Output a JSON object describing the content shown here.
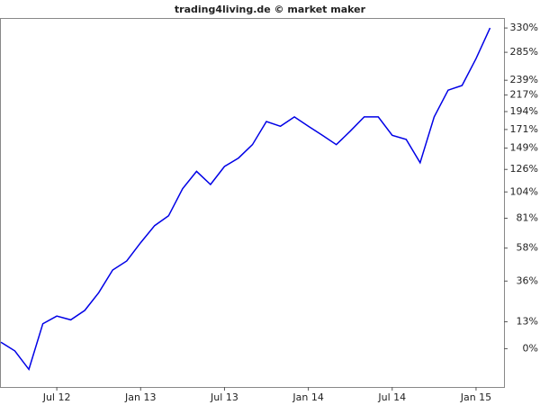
{
  "chart_data": {
    "type": "line",
    "title": "trading4living.de © market maker",
    "x": [
      "2012-03",
      "2012-04",
      "2012-05",
      "2012-06",
      "2012-07",
      "2012-08",
      "2012-09",
      "2012-10",
      "2012-11",
      "2012-12",
      "2013-01",
      "2013-02",
      "2013-03",
      "2013-04",
      "2013-05",
      "2013-06",
      "2013-07",
      "2013-08",
      "2013-09",
      "2013-10",
      "2013-11",
      "2013-12",
      "2014-01",
      "2014-02",
      "2014-03",
      "2014-04",
      "2014-05",
      "2014-06",
      "2014-07",
      "2014-08",
      "2014-09",
      "2014-10",
      "2014-11",
      "2014-12",
      "2015-01",
      "2015-02"
    ],
    "series": [
      {
        "color": "#0000e6",
        "values": [
          3,
          -1,
          -9,
          12,
          16,
          14,
          19,
          29,
          43,
          49,
          62,
          75,
          83,
          107,
          124,
          111,
          129,
          138,
          153,
          181,
          175,
          187,
          175,
          164,
          153,
          169,
          187,
          187,
          164,
          159,
          133,
          187,
          224,
          231,
          274,
          330
        ]
      }
    ],
    "xlim": [
      "2012-03",
      "2015-03"
    ],
    "xticks": [
      {
        "value": "2012-07",
        "label": "Jul 12"
      },
      {
        "value": "2013-01",
        "label": "Jan 13"
      },
      {
        "value": "2013-07",
        "label": "Jul 13"
      },
      {
        "value": "2014-01",
        "label": "Jan 14"
      },
      {
        "value": "2014-07",
        "label": "Jul 14"
      },
      {
        "value": "2015-01",
        "label": "Jan 15"
      }
    ],
    "ylim": [
      -16,
      350
    ],
    "yscale": "log",
    "yticks": [
      {
        "value": 0,
        "label": "0%"
      },
      {
        "value": 13,
        "label": "13%"
      },
      {
        "value": 36,
        "label": "36%"
      },
      {
        "value": 58,
        "label": "58%"
      },
      {
        "value": 81,
        "label": "81%"
      },
      {
        "value": 104,
        "label": "104%"
      },
      {
        "value": 126,
        "label": "126%"
      },
      {
        "value": 149,
        "label": "149%"
      },
      {
        "value": 171,
        "label": "171%"
      },
      {
        "value": 194,
        "label": "194%"
      },
      {
        "value": 217,
        "label": "217%"
      },
      {
        "value": 239,
        "label": "239%"
      },
      {
        "value": 285,
        "label": "285%"
      },
      {
        "value": 330,
        "label": "330%"
      }
    ]
  }
}
